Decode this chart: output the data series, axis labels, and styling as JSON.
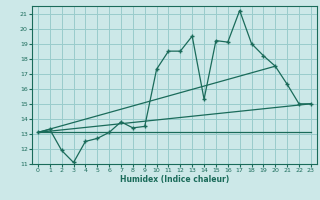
{
  "xlabel": "Humidex (Indice chaleur)",
  "bg_color": "#cce8e8",
  "grid_color": "#99cccc",
  "line_color": "#1a6b5a",
  "xlim": [
    -0.5,
    23.5
  ],
  "ylim": [
    11,
    21.5
  ],
  "xticks": [
    0,
    1,
    2,
    3,
    4,
    5,
    6,
    7,
    8,
    9,
    10,
    11,
    12,
    13,
    14,
    15,
    16,
    17,
    18,
    19,
    20,
    21,
    22,
    23
  ],
  "yticks": [
    11,
    12,
    13,
    14,
    15,
    16,
    17,
    18,
    19,
    20,
    21
  ],
  "main_line": {
    "x": [
      0,
      1,
      2,
      3,
      4,
      5,
      6,
      7,
      8,
      9,
      10,
      11,
      12,
      13,
      14,
      15,
      16,
      17,
      18,
      19,
      20,
      21,
      22,
      23
    ],
    "y": [
      13.1,
      13.3,
      11.9,
      11.1,
      12.5,
      12.7,
      13.1,
      13.8,
      13.4,
      13.5,
      17.3,
      18.5,
      18.5,
      19.5,
      15.3,
      19.2,
      19.1,
      21.2,
      19.0,
      18.2,
      17.5,
      16.3,
      15.0,
      15.0
    ]
  },
  "upper_line": {
    "x": [
      0,
      20
    ],
    "y": [
      13.1,
      17.5
    ]
  },
  "middle_line": {
    "x": [
      0,
      23
    ],
    "y": [
      13.1,
      15.0
    ]
  },
  "lower_line": {
    "x": [
      0,
      23
    ],
    "y": [
      13.1,
      13.1
    ]
  }
}
